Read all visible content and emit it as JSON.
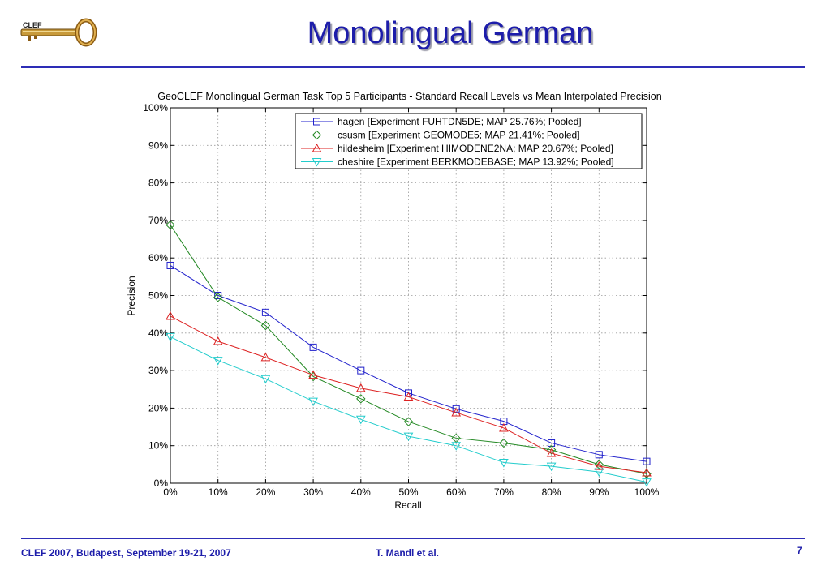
{
  "slide": {
    "title": "Monolingual German",
    "logo_text": "CLEF",
    "footer_left": "CLEF 2007, Budapest, September 19-21, 2007",
    "footer_center": "T. Mandl et al.",
    "page_number": "7"
  },
  "colors": {
    "title": "#1d1daa",
    "rule": "#2d2db6"
  },
  "chart_data": {
    "type": "line",
    "title": "GeoCLEF Monolingual German Task Top 5 Participants -  Standard Recall Levels vs Mean Interpolated Precision",
    "xlabel": "Recall",
    "ylabel": "Precision",
    "x": [
      0,
      10,
      20,
      30,
      40,
      50,
      60,
      70,
      80,
      90,
      100
    ],
    "xlim": [
      0,
      100
    ],
    "ylim": [
      0,
      100
    ],
    "x_ticks": [
      "0%",
      "10%",
      "20%",
      "30%",
      "40%",
      "50%",
      "60%",
      "70%",
      "80%",
      "90%",
      "100%"
    ],
    "y_ticks": [
      "0%",
      "10%",
      "20%",
      "30%",
      "40%",
      "50%",
      "60%",
      "70%",
      "80%",
      "90%",
      "100%"
    ],
    "grid": true,
    "legend_position": "top-right",
    "series": [
      {
        "name": "hagen [Experiment FUHTDN5DE; MAP 25.76%; Pooled]",
        "color": "#2222cc",
        "marker": "square",
        "values": [
          58.0,
          50.0,
          45.5,
          36.2,
          30.0,
          24.0,
          19.8,
          16.5,
          10.7,
          7.6,
          5.8
        ]
      },
      {
        "name": "csusm [Experiment GEOMODE5; MAP 21.41%; Pooled]",
        "color": "#228822",
        "marker": "diamond",
        "values": [
          68.8,
          49.5,
          42.0,
          28.4,
          22.5,
          16.4,
          12.0,
          10.7,
          8.9,
          5.0,
          2.5
        ]
      },
      {
        "name": "hildesheim [Experiment HIMODENE2NA; MAP 20.67%; Pooled]",
        "color": "#dd2222",
        "marker": "triangle-up",
        "values": [
          44.5,
          37.8,
          33.5,
          28.8,
          25.3,
          23.0,
          18.8,
          14.7,
          8.0,
          4.5,
          2.8
        ]
      },
      {
        "name": "cheshire [Experiment BERKMODEBASE; MAP 13.92%; Pooled]",
        "color": "#22cccc",
        "marker": "triangle-down",
        "values": [
          39.0,
          32.7,
          27.8,
          21.8,
          17.0,
          12.5,
          10.0,
          5.5,
          4.5,
          3.0,
          0.3
        ]
      }
    ]
  }
}
